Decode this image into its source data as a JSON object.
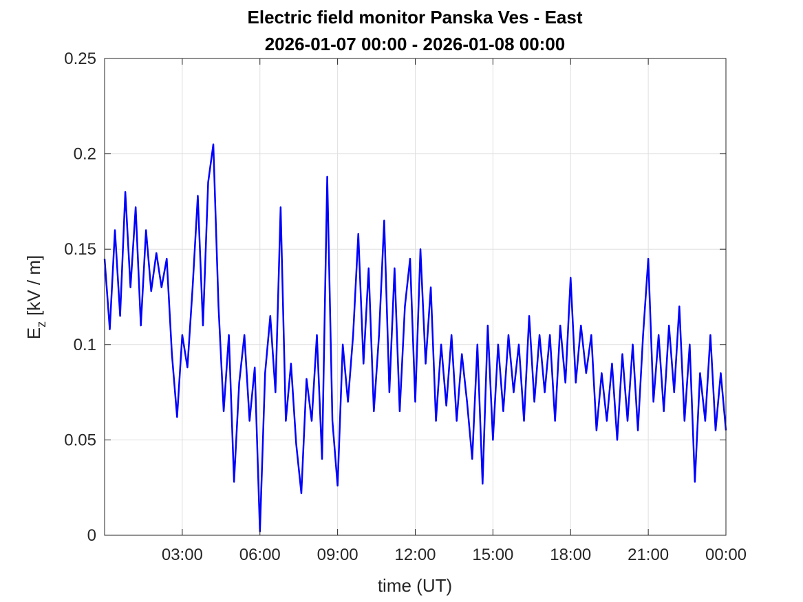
{
  "chart_data": {
    "type": "line",
    "title": "Electric field monitor Panska Ves - East",
    "subtitle": "2026-01-07 00:00 - 2026-01-08 00:00",
    "xlabel": "time (UT)",
    "ylabel": {
      "symbol": "E",
      "subscript": "z",
      "unit": "[kV / m]"
    },
    "x": [
      0,
      0.2,
      0.4,
      0.6,
      0.8,
      1,
      1.2,
      1.4,
      1.6,
      1.8,
      2,
      2.2,
      2.4,
      2.6,
      2.8,
      3,
      3.2,
      3.4,
      3.6,
      3.8,
      4,
      4.2,
      4.4,
      4.6,
      4.8,
      5,
      5.2,
      5.4,
      5.6,
      5.8,
      6,
      6.2,
      6.4,
      6.6,
      6.8,
      7,
      7.2,
      7.4,
      7.6,
      7.8,
      8,
      8.2,
      8.4,
      8.6,
      8.8,
      9,
      9.2,
      9.4,
      9.6,
      9.8,
      10,
      10.2,
      10.4,
      10.6,
      10.8,
      11,
      11.2,
      11.4,
      11.6,
      11.8,
      12,
      12.2,
      12.4,
      12.6,
      12.8,
      13,
      13.2,
      13.4,
      13.6,
      13.8,
      14,
      14.2,
      14.4,
      14.6,
      14.8,
      15,
      15.2,
      15.4,
      15.6,
      15.8,
      16,
      16.2,
      16.4,
      16.6,
      16.8,
      17,
      17.2,
      17.4,
      17.6,
      17.8,
      18,
      18.2,
      18.4,
      18.6,
      18.8,
      19,
      19.2,
      19.4,
      19.6,
      19.8,
      20,
      20.2,
      20.4,
      20.6,
      20.8,
      21,
      21.2,
      21.4,
      21.6,
      21.8,
      22,
      22.2,
      22.4,
      22.6,
      22.8,
      23,
      23.2,
      23.4,
      23.6,
      23.8,
      24
    ],
    "series": [
      {
        "name": "E_z",
        "color": "#0000ff",
        "values": [
          0.145,
          0.108,
          0.16,
          0.115,
          0.18,
          0.13,
          0.172,
          0.11,
          0.16,
          0.128,
          0.148,
          0.13,
          0.145,
          0.095,
          0.062,
          0.105,
          0.088,
          0.13,
          0.178,
          0.11,
          0.185,
          0.205,
          0.12,
          0.065,
          0.105,
          0.028,
          0.08,
          0.105,
          0.06,
          0.088,
          0.002,
          0.085,
          0.115,
          0.075,
          0.172,
          0.06,
          0.09,
          0.048,
          0.022,
          0.082,
          0.06,
          0.105,
          0.04,
          0.188,
          0.06,
          0.026,
          0.1,
          0.07,
          0.105,
          0.158,
          0.09,
          0.14,
          0.065,
          0.105,
          0.165,
          0.075,
          0.14,
          0.065,
          0.12,
          0.145,
          0.07,
          0.15,
          0.09,
          0.13,
          0.06,
          0.1,
          0.068,
          0.105,
          0.06,
          0.095,
          0.07,
          0.04,
          0.1,
          0.027,
          0.11,
          0.05,
          0.1,
          0.065,
          0.105,
          0.075,
          0.1,
          0.06,
          0.115,
          0.07,
          0.105,
          0.075,
          0.105,
          0.06,
          0.11,
          0.08,
          0.135,
          0.08,
          0.11,
          0.085,
          0.105,
          0.055,
          0.085,
          0.06,
          0.09,
          0.05,
          0.095,
          0.06,
          0.1,
          0.055,
          0.105,
          0.145,
          0.07,
          0.105,
          0.065,
          0.11,
          0.075,
          0.12,
          0.06,
          0.1,
          0.028,
          0.085,
          0.06,
          0.105,
          0.055,
          0.085,
          0.055
        ]
      }
    ],
    "xlim": [
      0,
      24
    ],
    "xticks": [
      {
        "value": 3,
        "label": "03:00"
      },
      {
        "value": 6,
        "label": "06:00"
      },
      {
        "value": 9,
        "label": "09:00"
      },
      {
        "value": 12,
        "label": "12:00"
      },
      {
        "value": 15,
        "label": "15:00"
      },
      {
        "value": 18,
        "label": "18:00"
      },
      {
        "value": 21,
        "label": "21:00"
      },
      {
        "value": 24,
        "label": "00:00"
      }
    ],
    "ylim": [
      0,
      0.25
    ],
    "yticks": [
      0,
      0.05,
      0.1,
      0.15,
      0.2,
      0.25
    ],
    "grid": true
  }
}
